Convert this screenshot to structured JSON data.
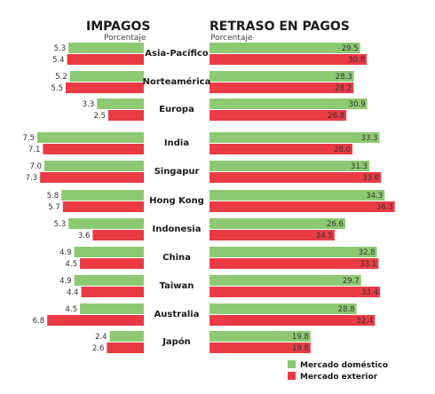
{
  "chart_data": [
    {
      "type": "bar",
      "orientation": "horizontal",
      "title": "IMPAGOS",
      "subtitle": "Porcentaje",
      "categories": [
        "Asia-Pacífico",
        "Norteamérica",
        "Europa",
        "India",
        "Singapur",
        "Hong Kong",
        "Indonesia",
        "China",
        "Taiwan",
        "Australia",
        "Japón"
      ],
      "series": [
        {
          "name": "Mercado doméstico",
          "color": "#8dc972",
          "values": [
            5.3,
            5.2,
            3.3,
            7.5,
            7.0,
            5.8,
            5.3,
            4.9,
            4.9,
            4.5,
            2.4
          ]
        },
        {
          "name": "Mercado exterior",
          "color": "#ea3a44",
          "values": [
            5.4,
            5.5,
            2.5,
            7.1,
            7.3,
            5.7,
            3.6,
            4.5,
            4.4,
            6.8,
            2.6
          ]
        }
      ]
    },
    {
      "type": "bar",
      "orientation": "horizontal",
      "title": "RETRASO EN PAGOS",
      "subtitle": "Porcentaje",
      "categories": [
        "Asia-Pacífico",
        "Norteamérica",
        "Europa",
        "India",
        "Singapur",
        "Hong Kong",
        "Indonesia",
        "China",
        "Taiwan",
        "Australia",
        "Japón"
      ],
      "series": [
        {
          "name": "Mercado doméstico",
          "color": "#8dc972",
          "values": [
            29.5,
            28.3,
            30.9,
            33.3,
            31.3,
            34.3,
            26.6,
            32.8,
            29.7,
            28.8,
            19.8
          ]
        },
        {
          "name": "Mercado exterior",
          "color": "#ea3a44",
          "values": [
            30.8,
            28.2,
            26.8,
            28.0,
            33.6,
            36.3,
            24.5,
            33.1,
            33.4,
            32.4,
            19.8
          ]
        }
      ]
    }
  ],
  "legend": {
    "placement": "bottom-right",
    "items": [
      {
        "label": "Mercado doméstico",
        "color": "#8dc972"
      },
      {
        "label": "Mercado exterior",
        "color": "#ea3a44"
      }
    ]
  }
}
